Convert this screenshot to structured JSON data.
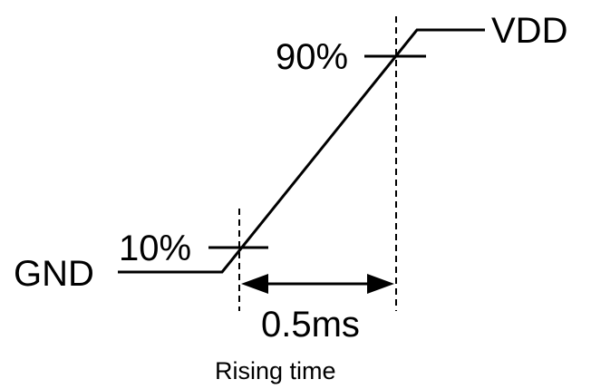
{
  "labels": {
    "high_level": "VDD",
    "low_level": "GND",
    "upper_threshold": "90%",
    "lower_threshold": "10%",
    "duration": "0.5ms",
    "caption": "Rising time"
  },
  "colors": {
    "line": "#000000",
    "background": "#ffffff"
  }
}
